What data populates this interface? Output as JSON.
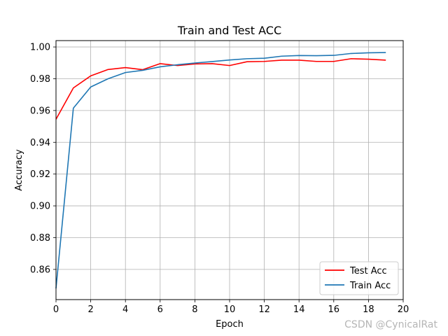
{
  "chart_data": {
    "type": "line",
    "title": "Train and Test ACC",
    "xlabel": "Epoch",
    "ylabel": "Accuracy",
    "xlim": [
      0,
      20
    ],
    "ylim": [
      0.841,
      1.004
    ],
    "xticks": [
      "0",
      "2",
      "4",
      "6",
      "8",
      "10",
      "12",
      "14",
      "16",
      "18",
      "20"
    ],
    "yticks": [
      "0.86",
      "0.88",
      "0.90",
      "0.92",
      "0.94",
      "0.96",
      "0.98",
      "1.00"
    ],
    "grid": true,
    "legend_position": "lower-right",
    "x": [
      0,
      1,
      2,
      3,
      4,
      5,
      6,
      7,
      8,
      9,
      10,
      11,
      12,
      13,
      14,
      15,
      16,
      17,
      18,
      19
    ],
    "series": [
      {
        "name": "Test Acc",
        "color": "#ff0000",
        "values": [
          0.9545,
          0.9742,
          0.9818,
          0.9858,
          0.987,
          0.9857,
          0.9895,
          0.9883,
          0.9893,
          0.9895,
          0.9883,
          0.9907,
          0.9909,
          0.9917,
          0.9917,
          0.9909,
          0.9909,
          0.9926,
          0.9923,
          0.9917
        ]
      },
      {
        "name": "Train Acc",
        "color": "#1f77b4",
        "values": [
          0.848,
          0.9615,
          0.9748,
          0.98,
          0.9839,
          0.9853,
          0.9875,
          0.9888,
          0.9899,
          0.9908,
          0.9918,
          0.9926,
          0.9929,
          0.9942,
          0.9946,
          0.9945,
          0.9947,
          0.9959,
          0.9963,
          0.9965
        ]
      }
    ]
  },
  "watermark": "CSDN @CynicalRat"
}
